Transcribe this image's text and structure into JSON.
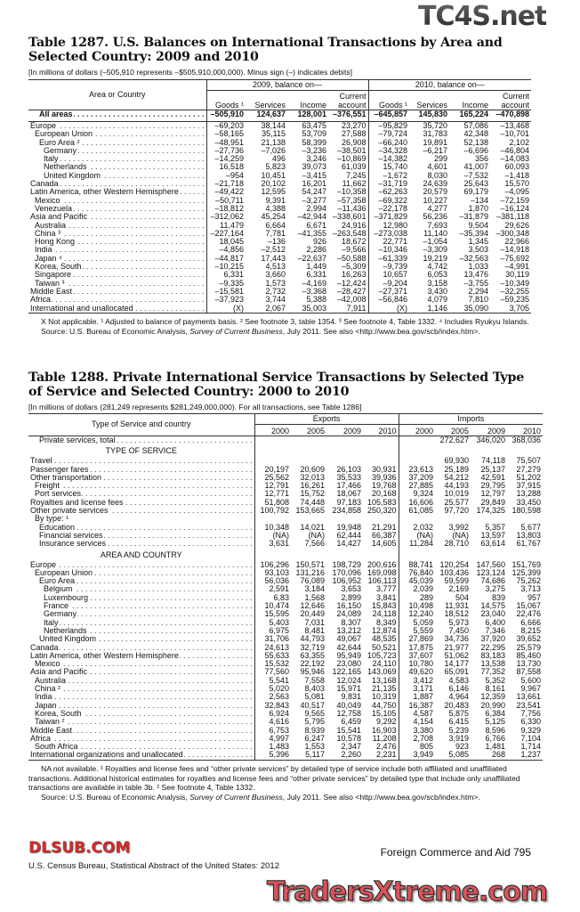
{
  "table1287": {
    "title": "Table 1287. U.S. Balances on International Transactions by Area and Selected Country: 2009 and 2010",
    "subtitle": "[In millions of dollars (–505,910 represents –$505,910,000,000). Minus sign (–) indicates debits]",
    "stub_header": "Area or Country",
    "group_headers": [
      "2009, balance on—",
      "2010, balance on—"
    ],
    "col_headers": [
      "Goods ¹",
      "Services",
      "Income",
      "Current account",
      "Goods ¹",
      "Services",
      "Income",
      "Current account"
    ],
    "rows": [
      {
        "label": "All areas",
        "indent": 2,
        "bold": true,
        "values": [
          "–505,910",
          "124,637",
          "128,001",
          "–376,551",
          "–645,857",
          "145,830",
          "165,224",
          "–470,898"
        ]
      },
      {
        "label": "Europe",
        "indent": 0,
        "values": [
          "–69,203",
          "38,144",
          "63,475",
          "23,270",
          "–95,829",
          "35,720",
          "57,086",
          "–13,468"
        ]
      },
      {
        "label": "European Union",
        "indent": 1,
        "values": [
          "–58,165",
          "35,115",
          "53,709",
          "27,588",
          "–79,724",
          "31,783",
          "42,348",
          "–10,701"
        ]
      },
      {
        "label": "Euro Area ²",
        "indent": 2,
        "values": [
          "–48,951",
          "21,138",
          "58,399",
          "26,908",
          "–66,240",
          "19,891",
          "52,138",
          "2,102"
        ]
      },
      {
        "label": "Germany",
        "indent": 3,
        "values": [
          "–27,736",
          "–7,026",
          "–3,236",
          "–38,501",
          "–34,328",
          "–6,217",
          "–6,696",
          "–46,804"
        ]
      },
      {
        "label": "Italy",
        "indent": 3,
        "values": [
          "–14,259",
          "496",
          "3,246",
          "–10,869",
          "–14,382",
          "299",
          "356",
          "–14,083"
        ]
      },
      {
        "label": "Netherlands",
        "indent": 3,
        "values": [
          "16,518",
          "5,823",
          "39,073",
          "61,039",
          "15,740",
          "4,601",
          "41,007",
          "60,093"
        ]
      },
      {
        "label": "United Kingdom",
        "indent": 3,
        "values": [
          "–954",
          "10,451",
          "–3,415",
          "7,245",
          "–1,672",
          "8,030",
          "–7,532",
          "–1,418"
        ]
      },
      {
        "label": "Canada",
        "indent": 0,
        "values": [
          "–21,718",
          "20,102",
          "16,201",
          "11,662",
          "–31,719",
          "24,639",
          "25,643",
          "15,570"
        ]
      },
      {
        "label": "Latin America, other Western  Hemisphere",
        "indent": 0,
        "values": [
          "–49,422",
          "12,595",
          "54,247",
          "–10,358",
          "–62,263",
          "20,579",
          "69,179",
          "–4,095"
        ]
      },
      {
        "label": "Mexico",
        "indent": 1,
        "values": [
          "–50,711",
          "9,391",
          "–3,277",
          "–57,358",
          "–69,322",
          "10,227",
          "–134",
          "–72,159"
        ]
      },
      {
        "label": "Venezuela",
        "indent": 1,
        "values": [
          "–18,812",
          "4,388",
          "2,994",
          "–11,436",
          "–22,178",
          "4,277",
          "1,870",
          "–16,124"
        ]
      },
      {
        "label": "Asia and Pacific",
        "indent": 0,
        "values": [
          "–312,062",
          "45,254",
          "–42,944",
          "–338,601",
          "–371,829",
          "56,236",
          "–31,879",
          "–381,118"
        ]
      },
      {
        "label": "Australia",
        "indent": 1,
        "values": [
          "11,479",
          "6,664",
          "6,671",
          "24,916",
          "12,980",
          "7,693",
          "9,504",
          "29,626"
        ]
      },
      {
        "label": "China ³",
        "indent": 1,
        "values": [
          "–227,164",
          "7,781",
          "–41,355",
          "–263,548",
          "–273,038",
          "11,140",
          "–35,394",
          "–300,348"
        ]
      },
      {
        "label": "Hong Kong",
        "indent": 1,
        "values": [
          "18,045",
          "–136",
          "926",
          "18,672",
          "22,771",
          "–1,054",
          "1,345",
          "22,966"
        ]
      },
      {
        "label": "India",
        "indent": 1,
        "values": [
          "–4,856",
          "–2,512",
          "2,286",
          "–9,566",
          "–10,346",
          "–3,309",
          "3,503",
          "–14,918"
        ]
      },
      {
        "label": "Japan ⁴",
        "indent": 1,
        "values": [
          "–44,817",
          "17,443",
          "–22,637",
          "–50,588",
          "–61,339",
          "19,219",
          "–32,563",
          "–75,692"
        ]
      },
      {
        "label": "Korea, South",
        "indent": 1,
        "values": [
          "–10,215",
          "4,513",
          "1,449",
          "–5,309",
          "–9,739",
          "4,742",
          "1,033",
          "–4,991"
        ]
      },
      {
        "label": "Singapore",
        "indent": 1,
        "values": [
          "6,331",
          "3,660",
          "6,331",
          "16,263",
          "10,657",
          "6,053",
          "13,476",
          "30,119"
        ]
      },
      {
        "label": "Taiwan ³",
        "indent": 1,
        "values": [
          "–9,335",
          "1,573",
          "–4,169",
          "–12,424",
          "–9,204",
          "3,158",
          "–3,755",
          "–10,349"
        ]
      },
      {
        "label": "Middle East",
        "indent": 0,
        "values": [
          "–15,581",
          "2,732",
          "–3,368",
          "–28,427",
          "–27,371",
          "3,430",
          "2,294",
          "–32,255"
        ]
      },
      {
        "label": "Africa",
        "indent": 0,
        "values": [
          "–37,923",
          "3,744",
          "5,388",
          "–42,008",
          "–56,846",
          "4,079",
          "7,810",
          "–59,235"
        ]
      },
      {
        "label": "International and unallocated",
        "indent": 0,
        "values": [
          "(X)",
          "2,067",
          "35,003",
          "7,911",
          "(X)",
          "1,146",
          "35,090",
          "3,705"
        ]
      }
    ],
    "footnote": "X Not applicable. ¹ Adjusted to balance of payments basis. ² See footnote 3, table 1354. ³ See footnote 4, Table 1332. ⁴ Includes Ryukyu Islands.",
    "source_prefix": "Source: U.S. Bureau of Economic Analysis, ",
    "source_italic": "Survey of Current Business",
    "source_suffix": ", July 2011. See also <http://www.bea.gov/scb/index.htm>."
  },
  "table1288": {
    "title": "Table 1288. Private International Service Transactions by Selected Type of Service and Selected Country: 2000 to 2010",
    "subtitle": "[In millions of dollars (281,249 represents $281,249,000,000). For all transactions, see Table 1286]",
    "stub_header": "Type of Service and country",
    "group_headers": [
      "Exports",
      "Imports"
    ],
    "col_headers": [
      "2000",
      "2005",
      "2009",
      "2010",
      "2000",
      "2005",
      "2009",
      "2010"
    ],
    "rows": [
      {
        "label": "Private services, total",
        "indent": 2,
        "values": [
          "",
          "",
          "",
          "",
          "",
          "272,627",
          "346,020",
          "368,036"
        ]
      },
      {
        "section": "TYPE OF SERVICE"
      },
      {
        "label": "Travel",
        "indent": 0,
        "values": [
          "",
          "",
          "",
          "",
          "",
          "69,930",
          "74,118",
          "75,507"
        ]
      },
      {
        "label": "Passenger fares",
        "indent": 0,
        "values": [
          "20,197",
          "20,609",
          "26,103",
          "30,931",
          "23,613",
          "25,189",
          "25,137",
          "27,279"
        ]
      },
      {
        "label": "Other transportation",
        "indent": 0,
        "values": [
          "25,562",
          "32,013",
          "35,533",
          "39,936",
          "37,209",
          "54,212",
          "42,591",
          "51,202"
        ]
      },
      {
        "label": "Freight",
        "indent": 1,
        "values": [
          "12,791",
          "16,261",
          "17,466",
          "19,768",
          "27,885",
          "44,193",
          "29,795",
          "37,915"
        ]
      },
      {
        "label": "Port services",
        "indent": 1,
        "values": [
          "12,771",
          "15,752",
          "18,067",
          "20,168",
          "9,324",
          "10,019",
          "12,797",
          "13,288"
        ]
      },
      {
        "label": "Royalties and license fees",
        "indent": 0,
        "values": [
          "51,808",
          "74,448",
          "97,183",
          "105,583",
          "16,606",
          "25,577",
          "29,849",
          "33,450"
        ]
      },
      {
        "label": "Other private services",
        "indent": 0,
        "values": [
          "100,792",
          "153,665",
          "234,858",
          "250,320",
          "61,085",
          "97,720",
          "174,325",
          "180,598"
        ]
      },
      {
        "label": "By type: ¹",
        "indent": 1,
        "nodots": true,
        "values": [
          "",
          "",
          "",
          "",
          "",
          "",
          "",
          ""
        ]
      },
      {
        "label": "Education",
        "indent": 2,
        "values": [
          "10,348",
          "14,021",
          "19,948",
          "21,291",
          "2,032",
          "3,992",
          "5,357",
          "5,677"
        ]
      },
      {
        "label": "Financial services",
        "indent": 2,
        "values": [
          "(NA)",
          "(NA)",
          "62,444",
          "66,387",
          "(NA)",
          "(NA)",
          "13,597",
          "13,803"
        ]
      },
      {
        "label": "Insurance services",
        "indent": 2,
        "values": [
          "3,631",
          "7,566",
          "14,427",
          "14,605",
          "11,284",
          "28,710",
          "63,614",
          "61,767"
        ]
      },
      {
        "section": "AREA AND COUNTRY"
      },
      {
        "label": "Europe",
        "indent": 0,
        "values": [
          "106,296",
          "150,571",
          "198,729",
          "200,616",
          "88,741",
          "120,254",
          "147,560",
          "151,769"
        ]
      },
      {
        "label": "European Union",
        "indent": 1,
        "values": [
          "93,103",
          "131,216",
          "170,096",
          "169,098",
          "76,840",
          "103,436",
          "123,124",
          "125,399"
        ]
      },
      {
        "label": "Euro Area",
        "indent": 2,
        "values": [
          "56,036",
          "76,089",
          "106,952",
          "106,113",
          "45,039",
          "59,599",
          "74,686",
          "75,262"
        ]
      },
      {
        "label": "Belgium",
        "indent": 3,
        "values": [
          "2,591",
          "3,184",
          "3,653",
          "3,777",
          "2,039",
          "2,169",
          "3,275",
          "3,713"
        ]
      },
      {
        "label": "Luxembourg",
        "indent": 3,
        "values": [
          "6,83",
          "1,568",
          "2,899",
          "3,841",
          "289",
          "504",
          "839",
          "957"
        ]
      },
      {
        "label": "France",
        "indent": 3,
        "values": [
          "10,474",
          "12,646",
          "16,150",
          "15,843",
          "10,498",
          "11,931",
          "14,575",
          "15,067"
        ]
      },
      {
        "label": "Germany",
        "indent": 3,
        "values": [
          "15,595",
          "20,449",
          "24,089",
          "24,118",
          "12,240",
          "18,512",
          "23,040",
          "22,476"
        ]
      },
      {
        "label": "Italy",
        "indent": 3,
        "values": [
          "5,403",
          "7,031",
          "8,307",
          "8,349",
          "5,059",
          "5,973",
          "6,400",
          "6,666"
        ]
      },
      {
        "label": "Netherlands",
        "indent": 3,
        "values": [
          "6,975",
          "8,481",
          "13,212",
          "12,874",
          "5,559",
          "7,450",
          "7,346",
          "8,215"
        ]
      },
      {
        "label": "United Kingdom",
        "indent": 2,
        "values": [
          "31,706",
          "44,793",
          "49,067",
          "48,535",
          "27,869",
          "34,736",
          "37,920",
          "39,652"
        ]
      },
      {
        "label": "Canada",
        "indent": 0,
        "values": [
          "24,613",
          "32,719",
          "42,644",
          "50,521",
          "17,875",
          "21,977",
          "22,295",
          "25,579"
        ]
      },
      {
        "label": "Latin America, other Western Hemisphere",
        "indent": 0,
        "values": [
          "55,633",
          "63,355",
          "95,949",
          "105,723",
          "37,607",
          "51,062",
          "83,183",
          "85,460"
        ]
      },
      {
        "label": "Mexico",
        "indent": 1,
        "values": [
          "15,532",
          "22,192",
          "23,080",
          "24,110",
          "10,780",
          "14,177",
          "13,538",
          "13,730"
        ]
      },
      {
        "label": "Asia and Pacific",
        "indent": 0,
        "values": [
          "77,560",
          "95,946",
          "122,165",
          "143,069",
          "49,620",
          "65,091",
          "77,352",
          "87,558"
        ]
      },
      {
        "label": "Australia",
        "indent": 1,
        "values": [
          "5,541",
          "7,558",
          "12,024",
          "13,168",
          "3,412",
          "4,583",
          "5,352",
          "5,600"
        ]
      },
      {
        "label": "China ²",
        "indent": 1,
        "values": [
          "5,020",
          "8,403",
          "15,971",
          "21,135",
          "3,171",
          "6,146",
          "8,161",
          "9,967"
        ]
      },
      {
        "label": "India",
        "indent": 1,
        "values": [
          "2,563",
          "5,081",
          "9,831",
          "10,319",
          "1,887",
          "4,964",
          "12,359",
          "13,661"
        ]
      },
      {
        "label": "Japan",
        "indent": 1,
        "values": [
          "32,843",
          "40,517",
          "40,049",
          "44,750",
          "16,387",
          "20,483",
          "20,990",
          "23,541"
        ]
      },
      {
        "label": "Korea, South",
        "indent": 1,
        "values": [
          "6,924",
          "9,565",
          "12,758",
          "15,105",
          "4,587",
          "5,875",
          "6,384",
          "7,756"
        ]
      },
      {
        "label": "Taiwan ²",
        "indent": 1,
        "values": [
          "4,616",
          "5,795",
          "6,459",
          "9,292",
          "4,154",
          "6,415",
          "5,125",
          "6,330"
        ]
      },
      {
        "label": "Middle East",
        "indent": 0,
        "values": [
          "6,753",
          "8,939",
          "15,541",
          "16,903",
          "3,380",
          "5,239",
          "8,596",
          "9,329"
        ]
      },
      {
        "label": "Africa",
        "indent": 0,
        "values": [
          "4,997",
          "6,247",
          "10,578",
          "11,208",
          "2,708",
          "3,919",
          "6,766",
          "7,104"
        ]
      },
      {
        "label": "South Africa",
        "indent": 1,
        "values": [
          "1,483",
          "1,553",
          "2,347",
          "2,476",
          "805",
          "923",
          "1,481",
          "1,714"
        ]
      },
      {
        "label": "International organizations and unallocated",
        "indent": 0,
        "values": [
          "5,396",
          "5,117",
          "2,260",
          "2,231",
          "3,949",
          "5,085",
          "268",
          "1,237"
        ]
      }
    ],
    "footnote": "NA not available. ¹ Royalties and license fees and “other private services” by detailed type of service include both affiliated and unaffiliated transactions. Additional historical estimates for royalties and license fees and “other private services” by detailed type that include only unaffiliated transactions are available in table 3b. ² See footnote 4, Table 1332.",
    "source_prefix": "Source: U.S. Bureau of Economic Analysis, ",
    "source_italic": "Survey of Current Business",
    "source_suffix": ", July 2011. See also <http://www.bea.gov/scb/index.htm>."
  },
  "footer": {
    "section": "Foreign Commerce and Aid  795",
    "publisher": "U.S. Census Bureau, Statistical Abstract of the United States: 2012"
  },
  "watermarks": {
    "top": "TC4S.net",
    "middle": "DLSUB.COM",
    "bottom": "TradersXtreme.com"
  }
}
